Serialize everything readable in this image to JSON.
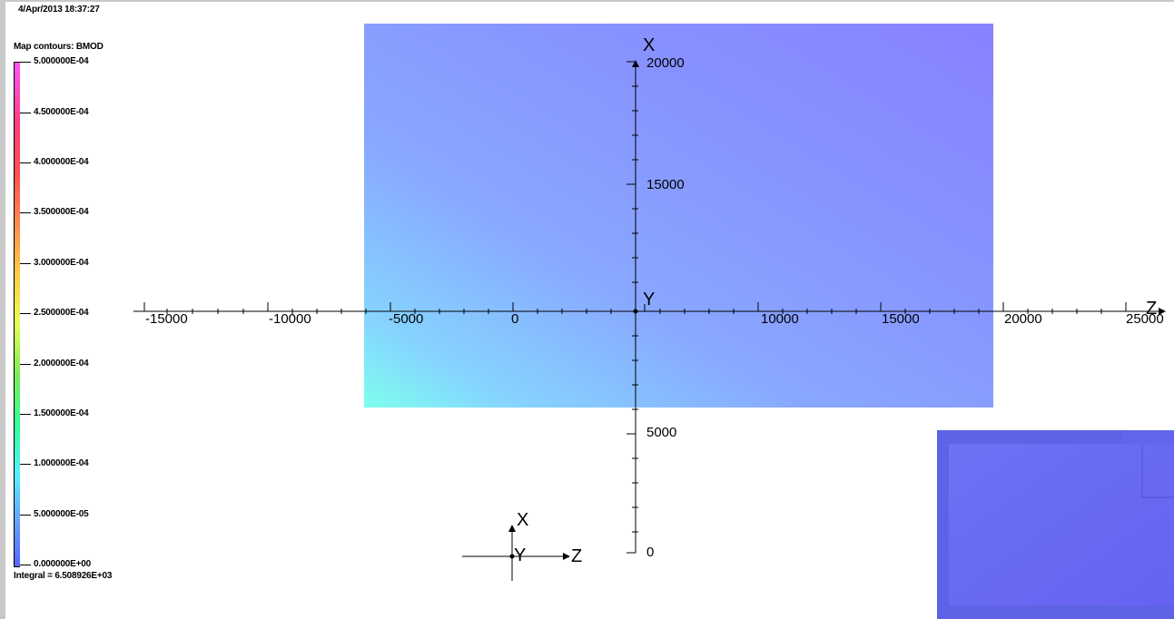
{
  "timestamp": "4/Apr/2013 18:37:27",
  "legend": {
    "title": "Map contours: BMOD",
    "labels": [
      "5.000000E-04",
      "4.500000E-04",
      "4.000000E-04",
      "3.500000E-04",
      "3.000000E-04",
      "2.500000E-04",
      "2.000000E-04",
      "1.500000E-04",
      "1.000000E-04",
      "5.000000E-05",
      "0.000000E+00"
    ],
    "integral": "Integral = 6.508926E+03"
  },
  "axes": {
    "horizontal_letter": "Z",
    "vertical_letter": "X",
    "origin_letter": "Y",
    "z_ticks": [
      "-15000",
      "-10000",
      "-5000",
      "0",
      "10000",
      "15000",
      "20000",
      "25000"
    ],
    "x_ticks": [
      "20000",
      "15000",
      "5000",
      "0"
    ]
  },
  "triad": {
    "x": "X",
    "y": "Y",
    "z": "Z"
  },
  "colors": {
    "field_fill": "#8790ff",
    "colorbar_top": "#ff55ff",
    "colorbar_bottom": "#5566ff",
    "inset_fill": "#6a6cf2"
  }
}
